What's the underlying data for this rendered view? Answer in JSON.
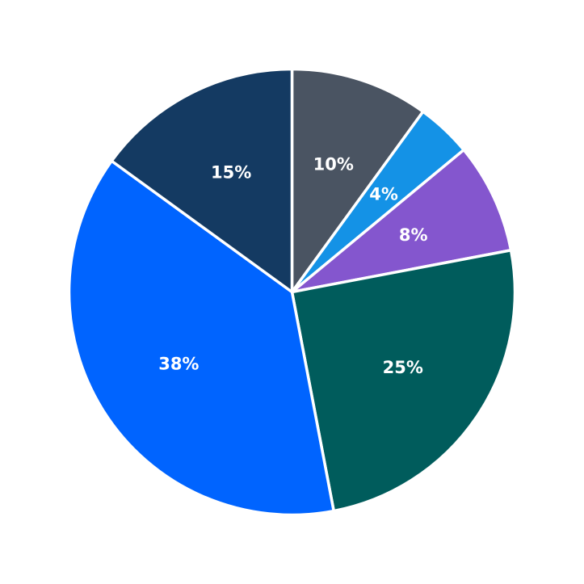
{
  "chart_data": {
    "type": "pie",
    "start_angle_deg": 90,
    "direction": "clockwise",
    "slices": [
      {
        "label": "10%",
        "value": 10,
        "color": "#4a5462"
      },
      {
        "label": "4%",
        "value": 4,
        "color": "#1492e6"
      },
      {
        "label": "8%",
        "value": 8,
        "color": "#8456ce"
      },
      {
        "label": "25%",
        "value": 25,
        "color": "#005c5c"
      },
      {
        "label": "38%",
        "value": 38,
        "color": "#0064ff"
      },
      {
        "label": "15%",
        "value": 15,
        "color": "#143a62"
      }
    ]
  }
}
